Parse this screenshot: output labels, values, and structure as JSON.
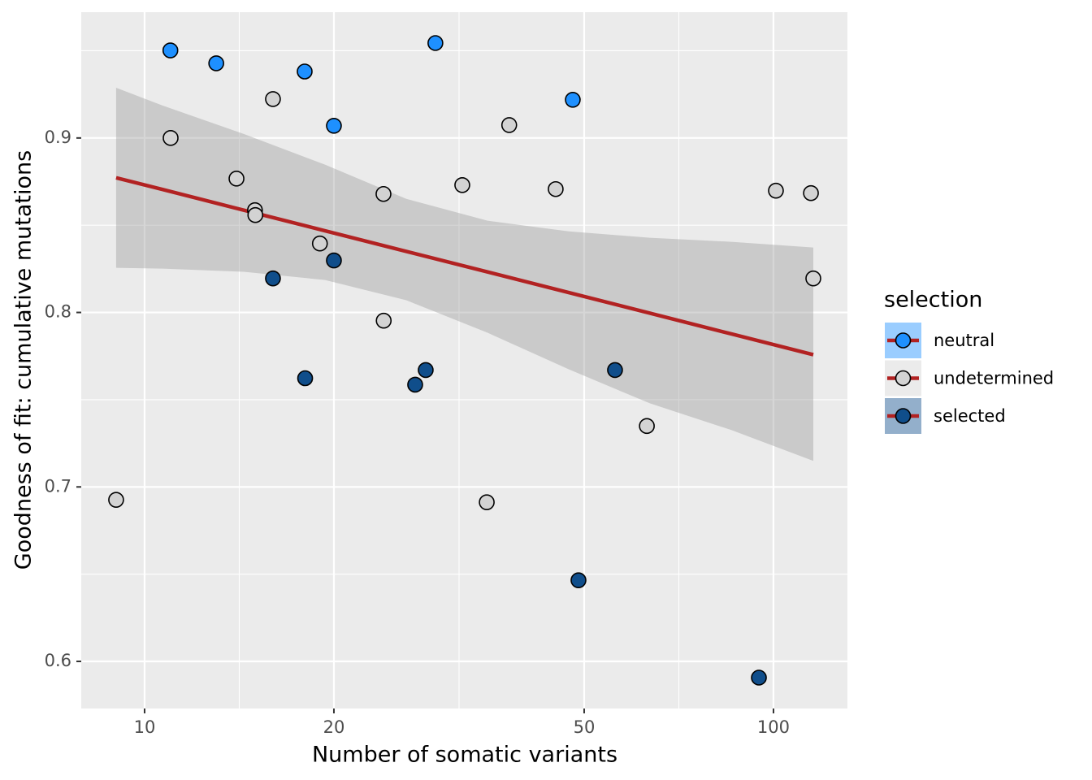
{
  "chart_data": {
    "type": "scatter",
    "x_label": "Number of somatic variants",
    "y_label": "Goodness of fit: cumulative mutations",
    "legend_title": "selection",
    "legend_position": "right",
    "xscale": "log",
    "grid": true,
    "xlim": [
      7.93,
      131.1
    ],
    "ylim": [
      0.573,
      0.9721
    ],
    "xticks": [
      10,
      20,
      50,
      100
    ],
    "yticks": [
      0.6,
      0.7,
      0.8,
      0.9
    ],
    "series": [
      {
        "name": "neutral",
        "color": "#1e90ff",
        "x": [
          10.99,
          13.0,
          17.97,
          29.0,
          20.0,
          47.96
        ],
        "values": [
          0.9502,
          0.9428,
          0.9381,
          0.9544,
          0.907,
          0.9219
        ]
      },
      {
        "name": "undetermined",
        "color": "#d3d3d3",
        "x": [
          9.01,
          11.0,
          16.0,
          14.0,
          14.98,
          15.0,
          19.0,
          23.98,
          24.0,
          32.0,
          38.0,
          45.05,
          35.0,
          62.9,
          100.9,
          114.7,
          115.7
        ],
        "values": [
          0.6926,
          0.9,
          0.9223,
          0.8767,
          0.8586,
          0.8558,
          0.8395,
          0.8679,
          0.7953,
          0.873,
          0.9074,
          0.8707,
          0.6912,
          0.7349,
          0.8698,
          0.8684,
          0.8195
        ]
      },
      {
        "name": "selected",
        "color": "#104e8b",
        "x": [
          16.0,
          20.0,
          18.0,
          26.93,
          27.99,
          48.97,
          55.98,
          94.8
        ],
        "values": [
          0.8195,
          0.8298,
          0.7623,
          0.7586,
          0.767,
          0.6465,
          0.767,
          0.5907
        ]
      }
    ],
    "fit": {
      "color": "#b22222",
      "band_color": "#999999",
      "x": [
        9.01,
        10.68,
        14.38,
        19.36,
        26.07,
        35.1,
        47.25,
        63.6,
        85.7,
        115.7
      ],
      "values": [
        0.8772,
        0.8705,
        0.8586,
        0.8468,
        0.835,
        0.8232,
        0.8114,
        0.7996,
        0.7877,
        0.7758
      ],
      "lower": [
        0.8256,
        0.8251,
        0.8233,
        0.8186,
        0.807,
        0.7884,
        0.7674,
        0.7479,
        0.7326,
        0.7149
      ],
      "upper": [
        0.9288,
        0.9186,
        0.9023,
        0.8847,
        0.8651,
        0.8526,
        0.8465,
        0.8428,
        0.8405,
        0.8372
      ]
    }
  }
}
